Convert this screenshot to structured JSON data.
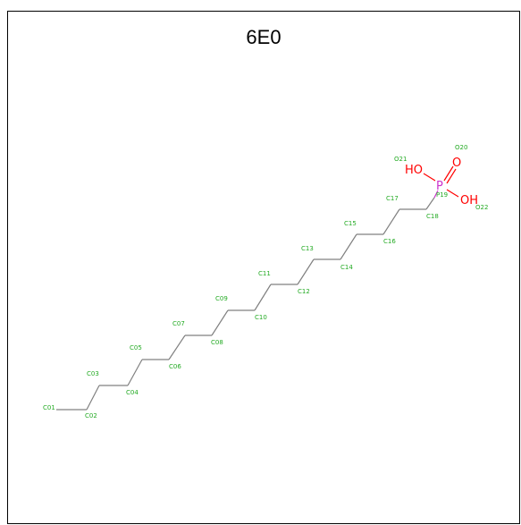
{
  "title": "6E0",
  "colors": {
    "carbon_label": "#22aa22",
    "bond": "#808080",
    "oxygen": "#ff0000",
    "phosphorus": "#cc33cc"
  },
  "atoms": [
    {
      "label": "C01"
    },
    {
      "label": "C02"
    },
    {
      "label": "C03"
    },
    {
      "label": "C04"
    },
    {
      "label": "C05"
    },
    {
      "label": "C06"
    },
    {
      "label": "C07"
    },
    {
      "label": "C08"
    },
    {
      "label": "C09"
    },
    {
      "label": "C10"
    },
    {
      "label": "C11"
    },
    {
      "label": "C12"
    },
    {
      "label": "C13"
    },
    {
      "label": "C14"
    },
    {
      "label": "C15"
    },
    {
      "label": "C16"
    },
    {
      "label": "C17"
    },
    {
      "label": "C18"
    },
    {
      "label": "P19"
    },
    {
      "label": "O20"
    },
    {
      "label": "O21"
    },
    {
      "label": "O22"
    }
  ],
  "groups": {
    "hydroxyl_left": "HO",
    "oxo": "O",
    "hydroxyl_right": "OH",
    "phosphorus": "P"
  }
}
